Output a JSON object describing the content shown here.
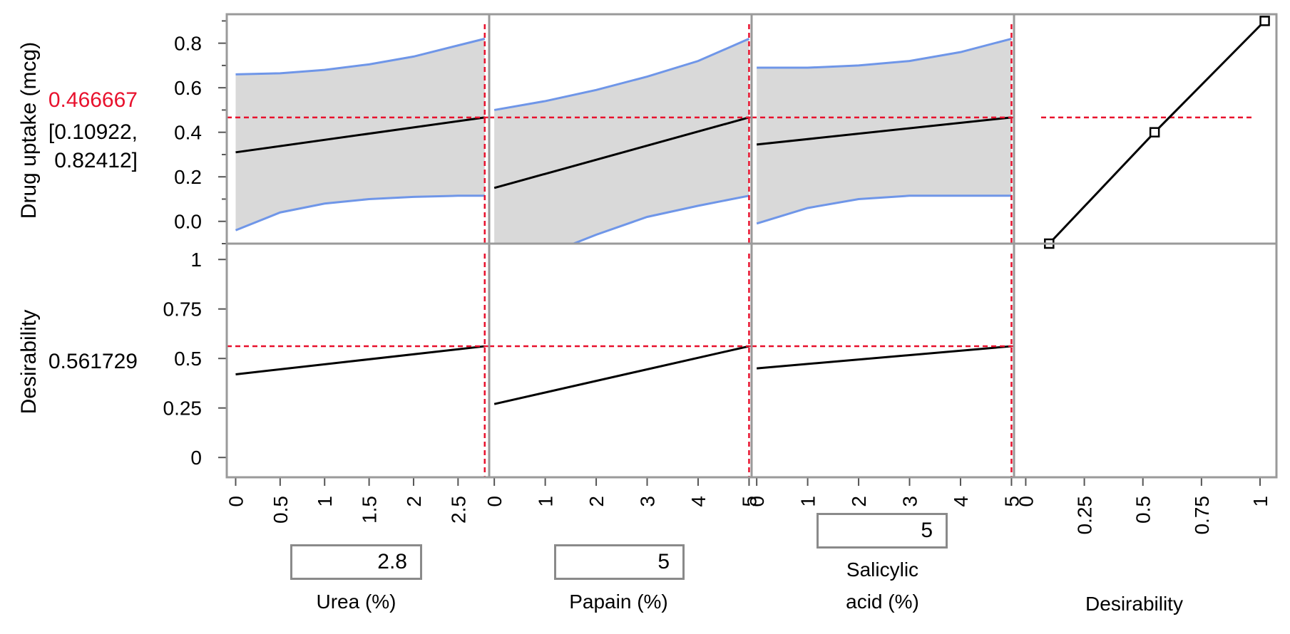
{
  "chart_data": {
    "type": "line",
    "title": "",
    "response_rows": [
      {
        "key": "drug",
        "ylabel": "Drug uptake (mcg)",
        "current_value": "0.466667",
        "ci_line1": "[0.10922,",
        "ci_line2": "0.82412]",
        "yticks": [
          "0.0",
          "0.2",
          "0.4",
          "0.6",
          "0.8"
        ],
        "ylim": [
          -0.1,
          0.93
        ]
      },
      {
        "key": "desirability",
        "ylabel": "Desirability",
        "current_value": "0.561729",
        "yticks": [
          "0",
          "0.25",
          "0.5",
          "0.75",
          "1"
        ],
        "ylim": [
          -0.1,
          1.08
        ]
      }
    ],
    "factors": [
      {
        "name": "Urea (%)",
        "current": "2.8",
        "xlim": [
          -0.1,
          2.85
        ],
        "xticks": [
          "0",
          "0.5",
          "1",
          "1.5",
          "2",
          "2.5"
        ],
        "drug": {
          "x": [
            0,
            2.8
          ],
          "y": [
            0.31,
            0.466667
          ],
          "ci_x": [
            0,
            0.5,
            1,
            1.5,
            2,
            2.5,
            2.8
          ],
          "ci_upper": [
            0.66,
            0.665,
            0.68,
            0.705,
            0.74,
            0.79,
            0.82
          ],
          "ci_lower": [
            -0.04,
            0.04,
            0.08,
            0.1,
            0.11,
            0.115,
            0.115
          ]
        },
        "desirability": {
          "x": [
            0,
            2.8
          ],
          "y": [
            0.42,
            0.561729
          ]
        }
      },
      {
        "name": "Papain (%)",
        "current": "5",
        "xlim": [
          -0.1,
          5.05
        ],
        "xticks": [
          "0",
          "1",
          "2",
          "3",
          "4",
          "5"
        ],
        "drug": {
          "x": [
            0,
            5
          ],
          "y": [
            0.15,
            0.466667
          ],
          "ci_x": [
            0,
            1,
            2,
            3,
            4,
            5
          ],
          "ci_upper": [
            0.5,
            0.54,
            0.59,
            0.65,
            0.72,
            0.82
          ],
          "ci_lower": [
            -0.3,
            -0.15,
            -0.06,
            0.02,
            0.07,
            0.115
          ]
        },
        "desirability": {
          "x": [
            0,
            5
          ],
          "y": [
            0.27,
            0.561729
          ]
        }
      },
      {
        "name": "Salicylic acid (%)",
        "name_line1": "Salicylic",
        "name_line2": "acid (%)",
        "current": "5",
        "xlim": [
          -0.1,
          5.05
        ],
        "xticks": [
          "0",
          "1",
          "2",
          "3",
          "4",
          "5"
        ],
        "drug": {
          "x": [
            0,
            5
          ],
          "y": [
            0.345,
            0.466667
          ],
          "ci_x": [
            0,
            1,
            2,
            3,
            4,
            5
          ],
          "ci_upper": [
            0.69,
            0.69,
            0.7,
            0.72,
            0.76,
            0.82
          ],
          "ci_lower": [
            -0.01,
            0.06,
            0.1,
            0.115,
            0.115,
            0.115
          ]
        },
        "desirability": {
          "x": [
            0,
            5
          ],
          "y": [
            0.45,
            0.561729
          ]
        }
      }
    ],
    "desirability_function": {
      "xlabel": "Desirability",
      "xlim": [
        -0.05,
        1.07
      ],
      "xticks": [
        "0",
        "0.25",
        "0.5",
        "0.75",
        "1"
      ],
      "points": {
        "desirability": [
          0.1,
          0.55,
          1.02
        ],
        "response": [
          -0.1,
          0.4,
          0.9
        ]
      }
    },
    "colors": {
      "fit": "#000000",
      "ci_band": "#d9d9d9",
      "ci_edge": "#6f96e8",
      "reference": "#e8112d",
      "frame": "#9a9a9a",
      "highlight_text": "#e8112d"
    },
    "grid": false
  }
}
